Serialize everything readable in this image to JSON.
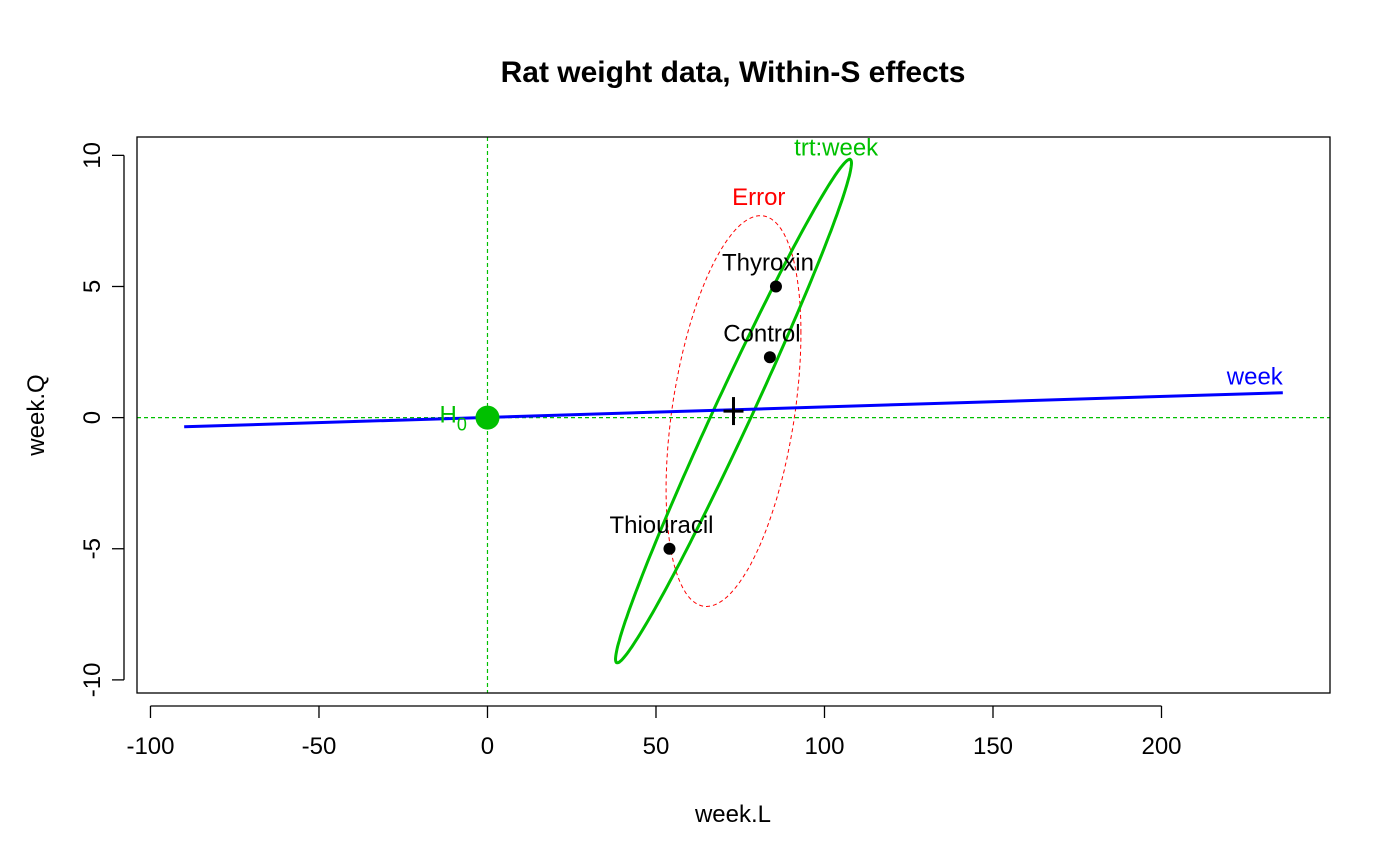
{
  "chart_data": {
    "type": "scatter",
    "title": "Rat weight data, Within-S effects",
    "xlabel": "week.L",
    "ylabel": "week.Q",
    "xlim": [
      -104,
      250
    ],
    "ylim": [
      -10.5,
      10.7
    ],
    "x_ticks": [
      -100,
      -50,
      0,
      50,
      100,
      150,
      200
    ],
    "y_ticks": [
      -10,
      -5,
      0,
      5,
      10
    ],
    "grid": false,
    "reference_lines": {
      "x": 0,
      "y": 0,
      "color": "#00c000",
      "style": "dashed"
    },
    "points": [
      {
        "label": "Thyroxin",
        "x": 85.6,
        "y": 5.0
      },
      {
        "label": "Control",
        "x": 83.8,
        "y": 2.3
      },
      {
        "label": "Thiouracil",
        "x": 54.0,
        "y": -5.0
      }
    ],
    "grand_mean": {
      "x": 73.0,
      "y": 0.25,
      "marker": "+"
    },
    "h0_point": {
      "label": "H",
      "subscript": "0",
      "x": 0,
      "y": 0,
      "color": "#00c000"
    },
    "ellipses": [
      {
        "name": "Error",
        "color": "#ff0000",
        "style": "dashed",
        "label_position": "top"
      },
      {
        "name": "trt:week",
        "color": "#00c000",
        "style": "solid",
        "label_position": "top-right"
      }
    ],
    "degenerate_lines": [
      {
        "name": "week",
        "color": "#0000ff",
        "from": [
          -90,
          -0.35
        ],
        "to": [
          236,
          0.95
        ]
      }
    ]
  }
}
